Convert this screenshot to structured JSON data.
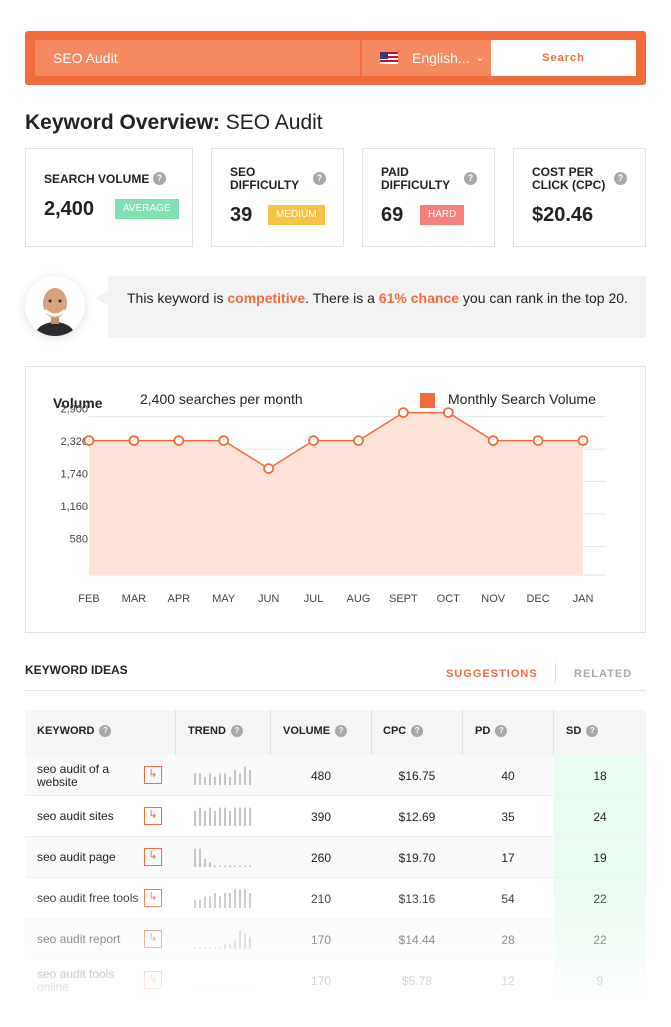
{
  "search": {
    "value": "SEO Audit",
    "language": "English...",
    "button": "Search"
  },
  "title": {
    "prefix": "Keyword Overview:",
    "keyword": "SEO Audit"
  },
  "metrics": [
    {
      "label": "Search Volume",
      "value": "2,400",
      "badge": "Average",
      "badge_color": "#7fe0b4"
    },
    {
      "label": "SEO Difficulty",
      "value": "39",
      "badge": "Medium",
      "badge_color": "#f6c344"
    },
    {
      "label": "Paid Difficulty",
      "value": "69",
      "badge": "Hard",
      "badge_color": "#f4817b"
    },
    {
      "label": "Cost Per Click (CPC)",
      "value": "$20.46"
    }
  ],
  "advice": {
    "pre": "This keyword is ",
    "competitive": "competitive",
    "mid": ". There is a ",
    "chance": "61% chance",
    "post": " you can rank in the top 20."
  },
  "chart_header": {
    "title": "Volume",
    "subtitle": "2,400 searches per month",
    "legend": "Monthly Search Volume"
  },
  "chart_data": {
    "type": "area",
    "categories": [
      "FEB",
      "MAR",
      "APR",
      "MAY",
      "JUN",
      "JUL",
      "AUG",
      "SEPT",
      "OCT",
      "NOV",
      "DEC",
      "JAN"
    ],
    "values": [
      2400,
      2400,
      2400,
      2400,
      1900,
      2400,
      2400,
      2900,
      2900,
      2400,
      2400,
      2400
    ],
    "yticks": [
      "2,900",
      "2,320",
      "1,740",
      "1,160",
      "580"
    ],
    "ytick_values": [
      2900,
      2320,
      1740,
      1160,
      580
    ],
    "ylim": [
      0,
      3000
    ],
    "series_name": "Monthly Search Volume",
    "color": "#f26b3a",
    "grid": true
  },
  "keyword_ideas": {
    "title": "KEYWORD IDEAS",
    "tabs": {
      "suggestions": "SUGGESTIONS",
      "related": "RELATED"
    },
    "columns": [
      "KEYWORD",
      "TREND",
      "VOLUME",
      "CPC",
      "PD",
      "SD"
    ],
    "rows": [
      {
        "keyword": "seo audit of a website",
        "volume": "480",
        "cpc": "$16.75",
        "pd": "40",
        "sd": "18",
        "trend": [
          4,
          4,
          3,
          4,
          3,
          4,
          4,
          3,
          5,
          4,
          6,
          5
        ]
      },
      {
        "keyword": "seo audit sites",
        "volume": "390",
        "cpc": "$12.69",
        "pd": "35",
        "sd": "24",
        "trend": [
          5,
          6,
          5,
          6,
          5,
          6,
          6,
          5,
          6,
          6,
          6,
          6
        ]
      },
      {
        "keyword": "seo audit page",
        "volume": "260",
        "cpc": "$19.70",
        "pd": "17",
        "sd": "19",
        "trend": [
          6,
          6,
          3,
          2,
          1,
          1,
          1,
          1,
          1,
          1,
          1,
          1
        ]
      },
      {
        "keyword": "seo audit free tools",
        "volume": "210",
        "cpc": "$13.16",
        "pd": "54",
        "sd": "22",
        "trend": [
          3,
          3,
          4,
          4,
          5,
          4,
          5,
          5,
          6,
          6,
          6,
          5
        ]
      },
      {
        "keyword": "seo audit report",
        "volume": "170",
        "cpc": "$14.44",
        "pd": "28",
        "sd": "22",
        "trend": [
          1,
          1,
          1,
          1,
          1,
          1,
          2,
          2,
          3,
          6,
          5,
          4
        ]
      },
      {
        "keyword": "seo audit tools online",
        "volume": "170",
        "cpc": "$5.78",
        "pd": "12",
        "sd": "9",
        "trend": [
          1,
          1,
          1,
          1,
          1,
          1,
          1,
          1,
          1,
          1,
          1,
          1
        ]
      }
    ]
  }
}
